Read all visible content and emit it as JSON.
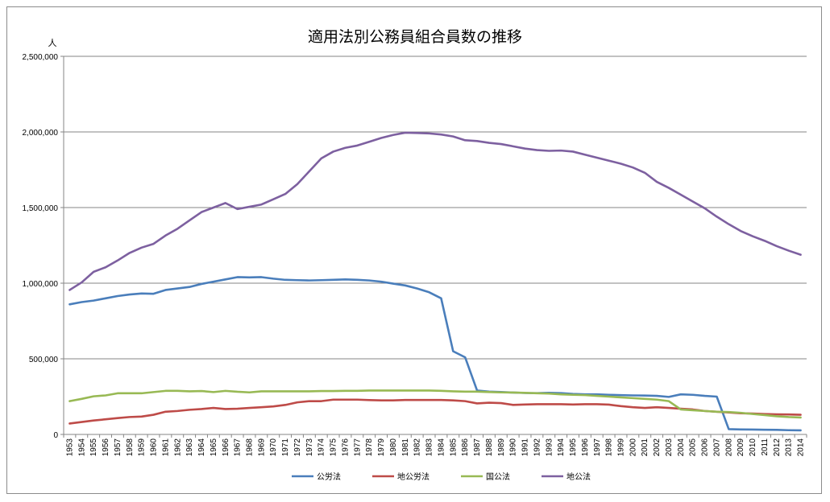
{
  "chart_data": {
    "type": "line",
    "title": "適用法別公務員組合員数の推移",
    "ylabel": "人",
    "xlabel": "",
    "ylim": [
      0,
      2500000
    ],
    "yticks": [
      0,
      500000,
      1000000,
      1500000,
      2000000,
      2500000
    ],
    "ytick_labels": [
      "0",
      "500,000",
      "1,000,000",
      "1,500,000",
      "2,000,000",
      "2,500,000"
    ],
    "grid": "horizontal",
    "legend_position": "bottom",
    "x": [
      1953,
      1954,
      1955,
      1956,
      1957,
      1958,
      1959,
      1960,
      1961,
      1962,
      1963,
      1964,
      1965,
      1966,
      1967,
      1968,
      1969,
      1970,
      1971,
      1972,
      1973,
      1974,
      1975,
      1976,
      1977,
      1978,
      1979,
      1980,
      1981,
      1982,
      1983,
      1984,
      1985,
      1986,
      1987,
      1988,
      1989,
      1990,
      1991,
      1992,
      1993,
      1994,
      1995,
      1996,
      1997,
      1998,
      1999,
      2000,
      2001,
      2002,
      2003,
      2004,
      2005,
      2006,
      2007,
      2008,
      2009,
      2010,
      2011,
      2012,
      2013,
      2014
    ],
    "series": [
      {
        "name": "公労法",
        "color": "#4a7ebb",
        "values": [
          860000,
          875000,
          885000,
          900000,
          915000,
          925000,
          932000,
          930000,
          955000,
          965000,
          975000,
          995000,
          1010000,
          1025000,
          1040000,
          1038000,
          1040000,
          1030000,
          1022000,
          1020000,
          1018000,
          1020000,
          1022000,
          1025000,
          1022000,
          1018000,
          1010000,
          997000,
          985000,
          965000,
          940000,
          900000,
          550000,
          510000,
          290000,
          283000,
          280000,
          277000,
          274000,
          273000,
          275000,
          273000,
          268000,
          265000,
          265000,
          262000,
          260000,
          258000,
          257000,
          255000,
          248000,
          265000,
          262000,
          255000,
          250000,
          35000,
          33000,
          32000,
          31000,
          30000,
          28000,
          27000
        ]
      },
      {
        "name": "地公労法",
        "color": "#be4b48",
        "values": [
          72000,
          82000,
          92000,
          100000,
          108000,
          115000,
          118000,
          130000,
          150000,
          155000,
          163000,
          168000,
          175000,
          168000,
          170000,
          175000,
          180000,
          185000,
          195000,
          212000,
          220000,
          220000,
          230000,
          230000,
          230000,
          227000,
          225000,
          225000,
          228000,
          228000,
          228000,
          228000,
          225000,
          220000,
          205000,
          210000,
          207000,
          195000,
          198000,
          200000,
          200000,
          200000,
          198000,
          200000,
          200000,
          197000,
          187000,
          180000,
          175000,
          180000,
          175000,
          170000,
          165000,
          155000,
          150000,
          145000,
          140000,
          138000,
          135000,
          133000,
          132000,
          130000
        ]
      },
      {
        "name": "国公法",
        "color": "#98b954",
        "values": [
          220000,
          235000,
          252000,
          258000,
          272000,
          272000,
          272000,
          280000,
          288000,
          288000,
          285000,
          287000,
          280000,
          288000,
          282000,
          278000,
          285000,
          285000,
          285000,
          285000,
          285000,
          287000,
          287000,
          288000,
          288000,
          290000,
          290000,
          290000,
          290000,
          290000,
          290000,
          288000,
          285000,
          283000,
          283000,
          280000,
          278000,
          277000,
          275000,
          272000,
          270000,
          265000,
          262000,
          260000,
          255000,
          250000,
          245000,
          240000,
          235000,
          230000,
          220000,
          165000,
          160000,
          155000,
          150000,
          148000,
          143000,
          135000,
          128000,
          120000,
          115000,
          112000
        ]
      },
      {
        "name": "地公法",
        "color": "#7d60a0",
        "values": [
          955000,
          1005000,
          1075000,
          1105000,
          1150000,
          1200000,
          1235000,
          1260000,
          1315000,
          1360000,
          1415000,
          1470000,
          1500000,
          1530000,
          1490000,
          1505000,
          1520000,
          1555000,
          1590000,
          1655000,
          1740000,
          1825000,
          1870000,
          1895000,
          1910000,
          1935000,
          1960000,
          1980000,
          1995000,
          1993000,
          1990000,
          1983000,
          1970000,
          1945000,
          1940000,
          1928000,
          1920000,
          1905000,
          1890000,
          1880000,
          1875000,
          1877000,
          1870000,
          1850000,
          1830000,
          1810000,
          1790000,
          1765000,
          1730000,
          1670000,
          1630000,
          1585000,
          1540000,
          1495000,
          1440000,
          1390000,
          1345000,
          1310000,
          1280000,
          1245000,
          1215000,
          1188000
        ]
      }
    ]
  }
}
